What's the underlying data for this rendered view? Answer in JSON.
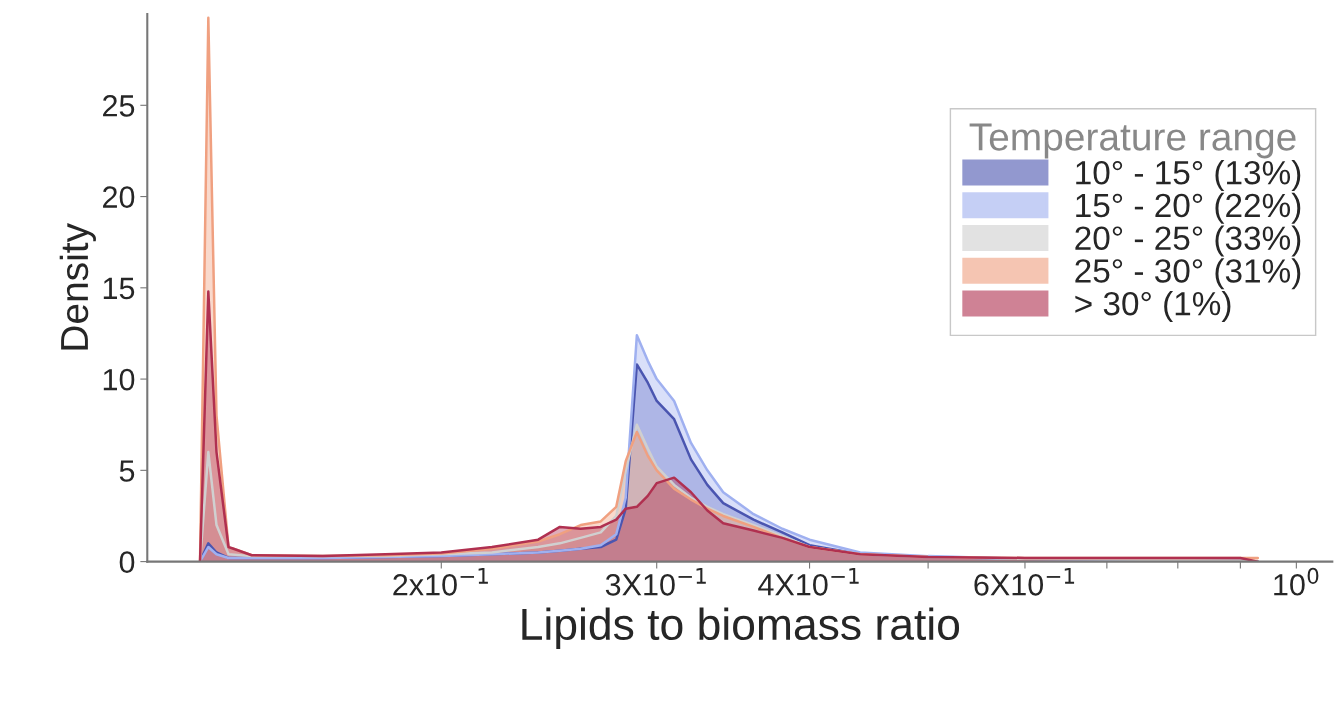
{
  "chart_data": {
    "type": "area",
    "xlabel": "Lipids to biomass ratio",
    "ylabel": "Density",
    "legend_title": "Temperature range",
    "log": "x",
    "x": [
      0.127,
      0.129,
      0.131,
      0.134,
      0.14,
      0.16,
      0.18,
      0.2,
      0.22,
      0.24,
      0.25,
      0.26,
      0.27,
      0.278,
      0.283,
      0.289,
      0.295,
      0.3,
      0.31,
      0.32,
      0.33,
      0.34,
      0.36,
      0.38,
      0.4,
      0.44,
      0.5,
      0.6,
      0.75,
      0.9,
      0.93
    ],
    "series": [
      {
        "name": "10° - 15° (13%)",
        "color": "#4a55b0",
        "values": [
          0,
          1.0,
          0.5,
          0.2,
          0.2,
          0.2,
          0.25,
          0.3,
          0.4,
          0.5,
          0.6,
          0.7,
          0.8,
          1.2,
          2.9,
          10.8,
          9.8,
          8.8,
          7.8,
          5.6,
          4.2,
          3.2,
          2.3,
          1.6,
          0.9,
          0.4,
          0.25,
          0.15,
          0.1,
          0.05,
          0
        ]
      },
      {
        "name": "15° - 20° (22%)",
        "color": "#9fb0f0",
        "values": [
          0,
          0.8,
          0.4,
          0.2,
          0.2,
          0.2,
          0.25,
          0.3,
          0.4,
          0.5,
          0.6,
          0.7,
          0.9,
          1.5,
          3.5,
          12.4,
          11,
          10,
          8.8,
          6.5,
          5,
          3.8,
          2.6,
          1.8,
          1.2,
          0.5,
          0.3,
          0.15,
          0.1,
          0.05,
          0
        ]
      },
      {
        "name": "20° - 25° (33%)",
        "color": "#d0d0d0",
        "values": [
          0,
          6,
          2,
          0.4,
          0.3,
          0.3,
          0.3,
          0.4,
          0.5,
          0.8,
          1.0,
          1.3,
          1.6,
          2.5,
          5,
          7.5,
          6.2,
          5.2,
          4.2,
          3.5,
          3.0,
          2.6,
          2.0,
          1.4,
          0.8,
          0.4,
          0.25,
          0.15,
          0.1,
          0.05,
          0
        ]
      },
      {
        "name": "25° - 30° (31%)",
        "color": "#f0a080",
        "values": [
          0,
          29.8,
          8,
          0.8,
          0.35,
          0.3,
          0.35,
          0.45,
          0.7,
          1.1,
          1.5,
          2.0,
          2.2,
          3,
          5.5,
          7.1,
          5.8,
          5.0,
          4.0,
          3.4,
          2.9,
          2.5,
          1.9,
          1.3,
          0.8,
          0.4,
          0.25,
          0.2,
          0.2,
          0.2,
          0.2
        ]
      },
      {
        "name": "> 30° (1%)",
        "color": "#b03050",
        "values": [
          0,
          14.8,
          6,
          0.8,
          0.35,
          0.3,
          0.4,
          0.5,
          0.8,
          1.2,
          1.9,
          1.8,
          1.9,
          2.3,
          2.9,
          3.0,
          3.6,
          4.3,
          4.6,
          3.8,
          2.8,
          2.1,
          1.7,
          1.3,
          0.8,
          0.4,
          0.25,
          0.2,
          0.2,
          0.2,
          0
        ]
      }
    ],
    "xlim": [
      0.115,
      1.07
    ],
    "ylim": [
      0,
      30
    ],
    "xticks": [
      {
        "value": 0.2,
        "label": "2x10$^{−1}$"
      },
      {
        "value": 0.3,
        "label": "3X10$^{−1}$"
      },
      {
        "value": 0.4,
        "label": "4X10$^{−1}$"
      },
      {
        "value": 0.5,
        "label": null
      },
      {
        "value": 0.6,
        "label": "6X10$^{−1}$"
      },
      {
        "value": 0.7,
        "label": null
      },
      {
        "value": 0.8,
        "label": null
      },
      {
        "value": 0.9,
        "label": null
      },
      {
        "value": 1,
        "label": "10$^{0}$"
      }
    ],
    "yticks": [
      0,
      5,
      10,
      15,
      20,
      25
    ],
    "grid": false,
    "legend": "right"
  }
}
